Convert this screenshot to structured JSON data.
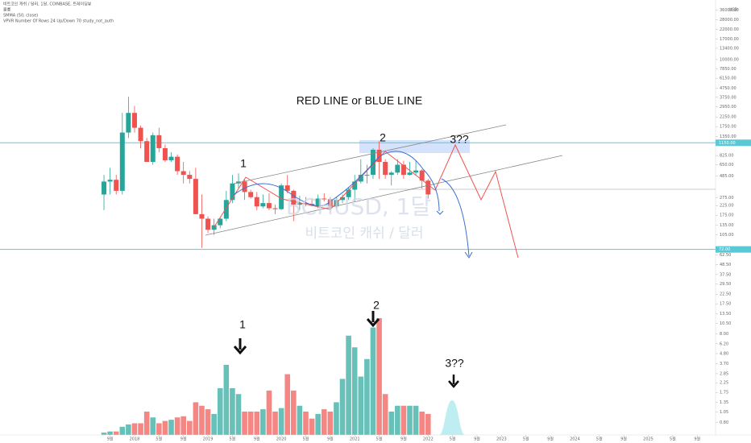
{
  "chart_data": {
    "type": "candlestick",
    "header": [
      "비트코인 캐쉬 / 달러, 1달, COINBASE, 트레이딩뷰",
      "볼륨",
      "SMMA (50, close)",
      "VPVR Number Of Rows 24 Up/Down 70 study_not_auth"
    ],
    "watermark": [
      "BCHUSD, 1달",
      "비트코인 캐쉬 / 달러"
    ],
    "annotations": [
      "RED LINE or BLUE LINE",
      "1",
      "2",
      "3??",
      "1",
      "2",
      "3??"
    ],
    "axis_unit": "USD",
    "log_scale": true,
    "up_color": "#26a69a",
    "down_color": "#ef5350",
    "x": [
      "2017-08",
      "2017-09",
      "2017-10",
      "2017-11",
      "2017-12",
      "2018-01",
      "2018-02",
      "2018-03",
      "2018-04",
      "2018-05",
      "2018-06",
      "2018-07",
      "2018-08",
      "2018-09",
      "2018-10",
      "2018-11",
      "2018-12",
      "2019-01",
      "2019-02",
      "2019-03",
      "2019-04",
      "2019-05",
      "2019-06",
      "2019-07",
      "2019-08",
      "2019-09",
      "2019-10",
      "2019-11",
      "2019-12",
      "2020-01",
      "2020-02",
      "2020-03",
      "2020-04",
      "2020-05",
      "2020-06",
      "2020-07",
      "2020-08",
      "2020-09",
      "2020-10",
      "2020-11",
      "2020-12",
      "2021-01",
      "2021-02",
      "2021-03",
      "2021-04",
      "2021-05",
      "2021-06",
      "2021-07",
      "2021-08",
      "2021-09",
      "2021-10",
      "2021-11",
      "2021-12",
      "2022-01"
    ],
    "open": [
      300,
      420,
      440,
      330,
      1500,
      2500,
      1700,
      1200,
      700,
      1400,
      1000,
      730,
      800,
      550,
      500,
      450,
      180,
      160,
      120,
      135,
      160,
      260,
      400,
      420,
      320,
      280,
      220,
      240,
      210,
      205,
      380,
      330,
      230,
      240,
      235,
      225,
      270,
      265,
      220,
      260,
      280,
      340,
      420,
      500,
      500,
      960,
      700,
      500,
      530,
      650,
      500,
      530,
      560,
      430
    ],
    "high": [
      500,
      600,
      500,
      2500,
      3800,
      3000,
      1800,
      1300,
      1500,
      1700,
      1100,
      900,
      850,
      700,
      550,
      600,
      300,
      170,
      160,
      165,
      330,
      500,
      520,
      440,
      340,
      320,
      300,
      310,
      230,
      400,
      500,
      340,
      290,
      280,
      270,
      300,
      310,
      280,
      280,
      300,
      360,
      500,
      750,
      650,
      1000,
      1200,
      750,
      550,
      750,
      720,
      700,
      720,
      580,
      450
    ],
    "low": [
      200,
      300,
      300,
      300,
      1300,
      1500,
      1000,
      700,
      650,
      900,
      700,
      700,
      500,
      400,
      400,
      180,
      75,
      110,
      105,
      125,
      150,
      240,
      350,
      260,
      270,
      200,
      210,
      200,
      180,
      200,
      310,
      150,
      200,
      220,
      220,
      210,
      250,
      200,
      210,
      240,
      260,
      250,
      400,
      400,
      450,
      450,
      450,
      380,
      500,
      450,
      490,
      500,
      350,
      270
    ],
    "close": [
      420,
      440,
      330,
      1500,
      2500,
      1700,
      1200,
      700,
      1400,
      1000,
      730,
      800,
      550,
      500,
      450,
      180,
      160,
      120,
      135,
      160,
      260,
      400,
      420,
      320,
      280,
      220,
      240,
      210,
      205,
      380,
      330,
      230,
      240,
      235,
      225,
      270,
      265,
      220,
      260,
      280,
      340,
      420,
      500,
      500,
      960,
      700,
      500,
      530,
      650,
      500,
      530,
      560,
      430,
      300
    ],
    "volume": [
      2,
      3,
      3,
      7,
      9,
      10,
      10,
      20,
      15,
      10,
      12,
      13,
      15,
      16,
      12,
      28,
      25,
      22,
      18,
      40,
      60,
      40,
      35,
      20,
      20,
      20,
      22,
      38,
      20,
      23,
      52,
      38,
      25,
      20,
      14,
      18,
      22,
      20,
      28,
      48,
      85,
      75,
      50,
      65,
      92,
      100,
      35,
      20,
      25,
      25,
      25,
      25,
      20,
      18
    ],
    "xlim": [
      "2016-03",
      "2025-12"
    ],
    "xticks": [
      {
        "value": "2017-09",
        "label": "9월"
      },
      {
        "value": "2018-01",
        "label": "2018"
      },
      {
        "value": "2018-05",
        "label": "5월"
      },
      {
        "value": "2018-09",
        "label": "9월"
      },
      {
        "value": "2019-01",
        "label": "2019"
      },
      {
        "value": "2019-05",
        "label": "5월"
      },
      {
        "value": "2019-09",
        "label": "9월"
      },
      {
        "value": "2020-01",
        "label": "2020"
      },
      {
        "value": "2020-05",
        "label": "5월"
      },
      {
        "value": "2020-09",
        "label": "9월"
      },
      {
        "value": "2021-01",
        "label": "2021"
      },
      {
        "value": "2021-05",
        "label": "5월"
      },
      {
        "value": "2021-09",
        "label": "9월"
      },
      {
        "value": "2022-01",
        "label": "2022"
      },
      {
        "value": "2022-05",
        "label": "5월"
      },
      {
        "value": "2022-09",
        "label": "9월"
      },
      {
        "value": "2023-01",
        "label": "2023"
      },
      {
        "value": "2023-05",
        "label": "5월"
      },
      {
        "value": "2023-09",
        "label": "9월"
      },
      {
        "value": "2024-01",
        "label": "2024"
      },
      {
        "value": "2024-05",
        "label": "5월"
      },
      {
        "value": "2024-09",
        "label": "9월"
      },
      {
        "value": "2025-01",
        "label": "2025"
      },
      {
        "value": "2025-05",
        "label": "5월"
      },
      {
        "value": "2025-09",
        "label": "9월"
      }
    ],
    "ylim": [
      0.58,
      47000
    ],
    "yticks": [
      {
        "value": 36000,
        "label": "36000.00"
      },
      {
        "value": 28000,
        "label": "28000.00"
      },
      {
        "value": 22000,
        "label": "22000.00"
      },
      {
        "value": 17000,
        "label": "17000.00"
      },
      {
        "value": 13400,
        "label": "13400.00"
      },
      {
        "value": 10000,
        "label": "10000.00"
      },
      {
        "value": 7850,
        "label": "7850.00"
      },
      {
        "value": 6150,
        "label": "6150.00"
      },
      {
        "value": 4750,
        "label": "4750.00"
      },
      {
        "value": 3750,
        "label": "3750.00"
      },
      {
        "value": 2950,
        "label": "2950.00"
      },
      {
        "value": 2250,
        "label": "2250.00"
      },
      {
        "value": 1750,
        "label": "1750.00"
      },
      {
        "value": 1350,
        "label": "1350.00"
      },
      {
        "value": 825,
        "label": "825.00"
      },
      {
        "value": 650,
        "label": "650.00"
      },
      {
        "value": 485,
        "label": "485.00"
      },
      {
        "value": 275,
        "label": "275.00"
      },
      {
        "value": 225,
        "label": "225.00"
      },
      {
        "value": 175,
        "label": "175.00"
      },
      {
        "value": 135,
        "label": "135.00"
      },
      {
        "value": 105,
        "label": "105.00"
      },
      {
        "value": 62.5,
        "label": "62.50"
      },
      {
        "value": 48.5,
        "label": "48.50"
      },
      {
        "value": 37.5,
        "label": "37.50"
      },
      {
        "value": 29.5,
        "label": "29.50"
      },
      {
        "value": 22.5,
        "label": "22.50"
      },
      {
        "value": 17.5,
        "label": "17.50"
      },
      {
        "value": 13.5,
        "label": "13.50"
      },
      {
        "value": 10.5,
        "label": "10.50"
      },
      {
        "value": 8,
        "label": "8.00"
      },
      {
        "value": 6.2,
        "label": "6.20"
      },
      {
        "value": 4.8,
        "label": "4.80"
      },
      {
        "value": 3.7,
        "label": "3.70"
      },
      {
        "value": 2.85,
        "label": "2.85"
      },
      {
        "value": 2.25,
        "label": "2.25"
      },
      {
        "value": 1.75,
        "label": "1.75"
      },
      {
        "value": 1.35,
        "label": "1.35"
      },
      {
        "value": 1.05,
        "label": "1.05"
      },
      {
        "value": 0.8,
        "label": "0.80"
      }
    ],
    "hlines": [
      {
        "value": 1150,
        "label": "1150.00",
        "color": "#5bc8d6"
      },
      {
        "value": 72,
        "label": "72.00",
        "color": "#5bc8d6"
      }
    ]
  }
}
